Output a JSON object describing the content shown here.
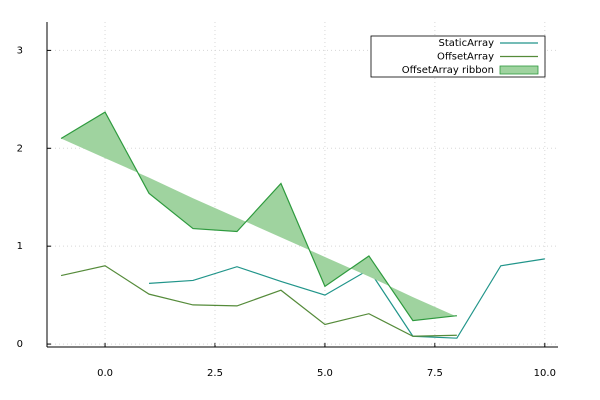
{
  "chart_data": {
    "type": "line",
    "xlim": [
      -1.32,
      10.3
    ],
    "ylim": [
      -0.03,
      3.29
    ],
    "xticks": [
      {
        "value": 0,
        "label": "0.0"
      },
      {
        "value": 2.5,
        "label": "2.5"
      },
      {
        "value": 5,
        "label": "5.0"
      },
      {
        "value": 7.5,
        "label": "7.5"
      },
      {
        "value": 10,
        "label": "10.0"
      }
    ],
    "yticks": [
      0,
      1,
      2,
      3
    ],
    "grid": true,
    "legend": "top-right",
    "series": [
      {
        "name": "StaticArray",
        "color": "#21958a",
        "x": [
          1,
          2,
          3,
          4,
          5,
          6,
          7,
          8,
          9,
          10
        ],
        "values": [
          0.62,
          0.65,
          0.79,
          0.64,
          0.5,
          0.76,
          0.08,
          0.06,
          0.8,
          0.87
        ]
      },
      {
        "name": "OffsetArray",
        "color": "#558b3a",
        "x": [
          -1,
          0,
          1,
          2,
          3,
          4,
          5,
          6,
          7,
          8
        ],
        "values": [
          0.7,
          0.8,
          0.51,
          0.4,
          0.39,
          0.55,
          0.2,
          0.31,
          0.08,
          0.09
        ]
      },
      {
        "name": "OffsetArray ribbon",
        "kind": "ribbon",
        "color": "#2e9a3e",
        "fill": "#9fd39f",
        "x": [
          -1,
          0,
          1,
          2,
          3,
          4,
          5,
          6,
          7,
          8
        ],
        "values": [
          2.1,
          2.37,
          1.54,
          1.18,
          1.15,
          1.64,
          0.59,
          0.9,
          0.24,
          0.29
        ],
        "lower": [
          2.1,
          1.9,
          1.7,
          1.49,
          1.29,
          1.09,
          0.89,
          0.69,
          0.48,
          0.28
        ]
      }
    ]
  }
}
